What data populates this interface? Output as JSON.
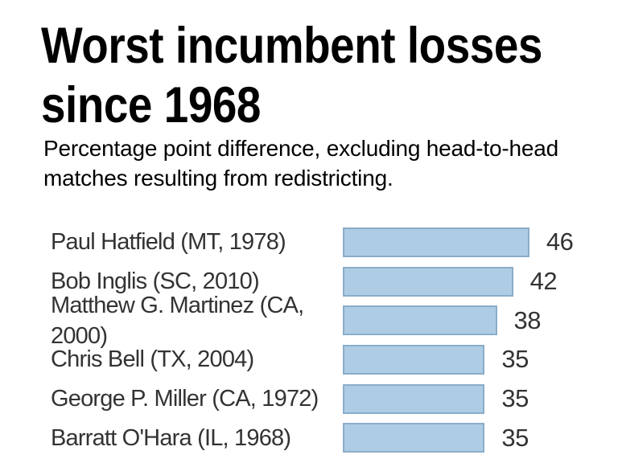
{
  "header": {
    "title_lines": [
      "Worst incumbent losses",
      "since 1968"
    ],
    "subtitle_lines": [
      "Percentage point difference, excluding head-to-head",
      "matches resulting from redistricting."
    ]
  },
  "chart_data": {
    "type": "bar",
    "orientation": "horizontal",
    "title": "Worst incumbent losses since 1968",
    "subtitle": "Percentage point difference, excluding head-to-head matches resulting from redistricting.",
    "categories": [
      "Paul Hatfield (MT, 1978)",
      "Bob Inglis (SC, 2010)",
      "Matthew G. Martinez (CA, 2000)",
      "Chris Bell (TX, 2004)",
      "George P. Miller (CA, 1972)",
      "Barratt O'Hara (IL, 1968)"
    ],
    "values": [
      46,
      42,
      38,
      35,
      35,
      35
    ],
    "value_labels": [
      "46",
      "42",
      "38",
      "35",
      "35",
      "35"
    ],
    "xlim": [
      0,
      46
    ],
    "grid": false,
    "legend": false,
    "axes_shown": false,
    "bar_color": "#aecde4",
    "bar_border_color": "#8aadc9",
    "label_color": "#333333",
    "value_color": "#333333",
    "background_color": "#ffffff"
  }
}
